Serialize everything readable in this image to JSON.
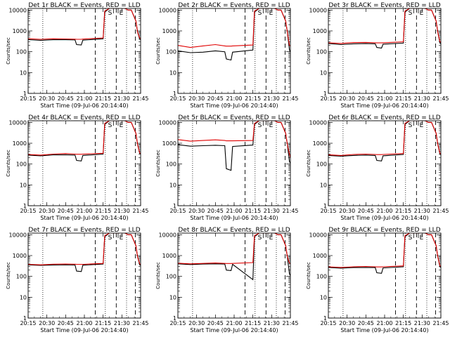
{
  "colors": {
    "events": "#000000",
    "lld": "#e00000",
    "axis": "#000000",
    "background": "#ffffff"
  },
  "chart_data": [
    {
      "type": "line",
      "title": "Det 1r BLACK = Events, RED = LLD",
      "xlabel": "Start Time (09-Jul-06 20:14:40)",
      "ylabel": "Counts/sec",
      "xticks": [
        "20:15",
        "20:30",
        "20:45",
        "21:00",
        "21:15",
        "21:30",
        "21:45"
      ],
      "yticks": [
        "1",
        "10",
        "100",
        "1000",
        "10000"
      ],
      "xlim": [
        0,
        36
      ],
      "ylim": [
        1,
        12000
      ],
      "yscale": "log",
      "markers": [
        "S",
        "E"
      ],
      "x": [
        0,
        4,
        8,
        12,
        15,
        15.5,
        17,
        17.5,
        24,
        24.5,
        26,
        29,
        31,
        32,
        33,
        34.5,
        35,
        35.7,
        36
      ],
      "series": [
        {
          "name": "Events",
          "values": [
            380,
            355,
            375,
            375,
            370,
            220,
            210,
            360,
            420,
            8000,
            13000,
            13000,
            12000,
            10000,
            10000,
            3000,
            900,
            400,
            380
          ]
        },
        {
          "name": "LLD",
          "values": [
            420,
            395,
            420,
            410,
            400,
            395,
            395,
            405,
            460,
            9000,
            13000,
            13000,
            12000,
            10000,
            10000,
            3000,
            900,
            450,
            420
          ]
        }
      ]
    },
    {
      "type": "line",
      "title": "Det 2r BLACK = Events, RED = LLD",
      "xlabel": "Start Time (09-Jul-06 20:14:40)",
      "ylabel": "Counts/sec",
      "xticks": [
        "20:15",
        "20:30",
        "20:45",
        "21:00",
        "21:15",
        "21:30",
        "21:45"
      ],
      "yticks": [
        "1",
        "10",
        "100",
        "1000",
        "10000"
      ],
      "xlim": [
        0,
        36
      ],
      "ylim": [
        1,
        12000
      ],
      "yscale": "log",
      "markers": [
        "S",
        "E"
      ],
      "x": [
        0,
        4,
        8,
        12,
        15,
        15.5,
        17,
        17.5,
        24,
        24.5,
        26,
        29,
        31,
        32,
        33,
        34.5,
        35,
        35.7,
        36
      ],
      "series": [
        {
          "name": "Events",
          "values": [
            110,
            90,
            95,
            110,
            100,
            45,
            40,
            95,
            120,
            8000,
            13000,
            13000,
            12000,
            10000,
            10000,
            3000,
            900,
            120,
            100
          ]
        },
        {
          "name": "LLD",
          "values": [
            200,
            160,
            190,
            220,
            190,
            185,
            185,
            190,
            210,
            9000,
            13000,
            13000,
            12000,
            10000,
            10000,
            3000,
            900,
            200,
            190
          ]
        }
      ]
    },
    {
      "type": "line",
      "title": "Det 3r BLACK = Events, RED = LLD",
      "xlabel": "Start Time (09-Jul-06 20:14:40)",
      "ylabel": "Counts/sec",
      "xticks": [
        "20:15",
        "20:30",
        "20:45",
        "21:00",
        "21:15",
        "21:30",
        "21:45"
      ],
      "yticks": [
        "1",
        "10",
        "100",
        "1000",
        "10000"
      ],
      "xlim": [
        0,
        36
      ],
      "ylim": [
        1,
        12000
      ],
      "yscale": "log",
      "markers": [
        "S",
        "E"
      ],
      "x": [
        0,
        4,
        8,
        12,
        15,
        15.5,
        17,
        17.5,
        24,
        24.5,
        26,
        29,
        31,
        32,
        33,
        34.5,
        35,
        35.7,
        36
      ],
      "series": [
        {
          "name": "Events",
          "values": [
            250,
            220,
            240,
            245,
            240,
            160,
            150,
            230,
            260,
            8000,
            13000,
            13000,
            12000,
            10000,
            10000,
            3000,
            900,
            260,
            240
          ]
        },
        {
          "name": "LLD",
          "values": [
            270,
            250,
            275,
            280,
            270,
            265,
            265,
            270,
            300,
            9000,
            13000,
            13000,
            12000,
            10000,
            10000,
            3000,
            900,
            300,
            280
          ]
        }
      ]
    },
    {
      "type": "line",
      "title": "Det 4r BLACK = Events, RED = LLD",
      "xlabel": "Start Time (09-Jul-06 20:14:40)",
      "ylabel": "Counts/sec",
      "xticks": [
        "20:15",
        "20:30",
        "20:45",
        "21:00",
        "21:15",
        "21:30",
        "21:45"
      ],
      "yticks": [
        "1",
        "10",
        "100",
        "1000",
        "10000"
      ],
      "xlim": [
        0,
        36
      ],
      "ylim": [
        1,
        12000
      ],
      "yscale": "log",
      "markers": [
        "S",
        "E"
      ],
      "x": [
        0,
        4,
        8,
        12,
        15,
        15.5,
        17,
        17.5,
        24,
        24.5,
        26,
        29,
        31,
        32,
        33,
        34.5,
        35,
        35.7,
        36
      ],
      "series": [
        {
          "name": "Events",
          "values": [
            270,
            250,
            275,
            280,
            270,
            150,
            140,
            260,
            300,
            8000,
            13000,
            13000,
            12000,
            10000,
            10000,
            3000,
            900,
            320,
            300
          ]
        },
        {
          "name": "LLD",
          "values": [
            290,
            270,
            300,
            320,
            300,
            295,
            295,
            300,
            330,
            9000,
            13000,
            13000,
            12000,
            10000,
            10000,
            3000,
            900,
            340,
            320
          ]
        }
      ]
    },
    {
      "type": "line",
      "title": "Det 5r BLACK = Events, RED = LLD",
      "xlabel": "Start Time (09-Jul-06 20:14:40)",
      "ylabel": "Counts/sec",
      "xticks": [
        "20:15",
        "20:30",
        "20:45",
        "21:00",
        "21:15",
        "21:30",
        "21:45"
      ],
      "yticks": [
        "1",
        "10",
        "100",
        "1000",
        "10000"
      ],
      "xlim": [
        0,
        36
      ],
      "ylim": [
        1,
        12000
      ],
      "yscale": "log",
      "markers": [
        "S",
        "E"
      ],
      "x": [
        0,
        4,
        8,
        12,
        15,
        15.5,
        17,
        17.5,
        24,
        24.5,
        26,
        29,
        31,
        32,
        33,
        34.5,
        35,
        35.7,
        36
      ],
      "series": [
        {
          "name": "Events",
          "values": [
            850,
            720,
            760,
            800,
            760,
            60,
            50,
            700,
            820,
            8000,
            13000,
            13000,
            12000,
            10000,
            10000,
            3000,
            900,
            130,
            110
          ]
        },
        {
          "name": "LLD",
          "values": [
            1500,
            1250,
            1350,
            1450,
            1350,
            1300,
            1300,
            1300,
            1350,
            9000,
            13000,
            13000,
            12000,
            10000,
            10000,
            3000,
            900,
            300,
            200
          ]
        }
      ]
    },
    {
      "type": "line",
      "title": "Det 6r BLACK = Events, RED = LLD",
      "xlabel": "Start Time (09-Jul-06 20:14:40)",
      "ylabel": "Counts/sec",
      "xticks": [
        "20:15",
        "20:30",
        "20:45",
        "21:00",
        "21:15",
        "21:30",
        "21:45"
      ],
      "yticks": [
        "1",
        "10",
        "100",
        "1000",
        "10000"
      ],
      "xlim": [
        0,
        36
      ],
      "ylim": [
        1,
        12000
      ],
      "yscale": "log",
      "markers": [
        "S",
        "E"
      ],
      "x": [
        0,
        4,
        8,
        12,
        15,
        15.5,
        17,
        17.5,
        24,
        24.5,
        26,
        29,
        31,
        32,
        33,
        34.5,
        35,
        35.7,
        36
      ],
      "series": [
        {
          "name": "Events",
          "values": [
            260,
            240,
            260,
            270,
            260,
            150,
            140,
            250,
            290,
            8000,
            13000,
            13000,
            12000,
            10000,
            10000,
            3000,
            900,
            300,
            280
          ]
        },
        {
          "name": "LLD",
          "values": [
            280,
            260,
            290,
            300,
            290,
            285,
            285,
            290,
            320,
            9000,
            13000,
            13000,
            12000,
            10000,
            10000,
            3000,
            900,
            330,
            300
          ]
        }
      ]
    },
    {
      "type": "line",
      "title": "Det 7r BLACK = Events, RED = LLD",
      "xlabel": "Start Time (09-Jul-06 20:14:40)",
      "ylabel": "Counts/sec",
      "xticks": [
        "20:15",
        "20:30",
        "20:45",
        "21:00",
        "21:15",
        "21:30",
        "21:45"
      ],
      "yticks": [
        "1",
        "10",
        "100",
        "1000",
        "10000"
      ],
      "xlim": [
        0,
        36
      ],
      "ylim": [
        1,
        12000
      ],
      "yscale": "log",
      "markers": [
        "S",
        "E"
      ],
      "x": [
        0,
        4,
        8,
        12,
        15,
        15.5,
        17,
        17.5,
        24,
        24.5,
        26,
        29,
        31,
        32,
        33,
        34.5,
        35,
        35.7,
        36
      ],
      "series": [
        {
          "name": "Events",
          "values": [
            360,
            340,
            355,
            360,
            355,
            180,
            170,
            345,
            390,
            8000,
            13000,
            13000,
            12000,
            10000,
            10000,
            3000,
            900,
            360,
            340
          ]
        },
        {
          "name": "LLD",
          "values": [
            380,
            360,
            385,
            395,
            385,
            380,
            380,
            380,
            420,
            9000,
            13000,
            13000,
            12000,
            10000,
            10000,
            3000,
            900,
            400,
            380
          ]
        }
      ]
    },
    {
      "type": "line",
      "title": "Det 8r BLACK = Events, RED = LLD",
      "xlabel": "Start Time (09-Jul-06 20:14:40)",
      "ylabel": "Counts/sec",
      "xticks": [
        "20:15",
        "20:30",
        "20:45",
        "21:00",
        "21:15",
        "21:30",
        "21:45"
      ],
      "yticks": [
        "1",
        "10",
        "100",
        "1000",
        "10000"
      ],
      "xlim": [
        0,
        36
      ],
      "ylim": [
        1,
        12000
      ],
      "yscale": "log",
      "markers": [
        "S",
        "E"
      ],
      "x": [
        0,
        4,
        8,
        12,
        15,
        15.5,
        17,
        17.5,
        24,
        24.5,
        26,
        29,
        31,
        32,
        33,
        34.5,
        35,
        35.7,
        36
      ],
      "series": [
        {
          "name": "Events",
          "values": [
            400,
            370,
            390,
            400,
            390,
            200,
            190,
            380,
            70,
            8000,
            13000,
            13000,
            12000,
            10000,
            10000,
            3000,
            900,
            130,
            110
          ]
        },
        {
          "name": "LLD",
          "values": [
            430,
            400,
            420,
            440,
            420,
            415,
            415,
            420,
            460,
            9000,
            13000,
            13000,
            12000,
            10000,
            10000,
            3000,
            900,
            440,
            420
          ]
        }
      ]
    },
    {
      "type": "line",
      "title": "Det 9r BLACK = Events, RED = LLD",
      "xlabel": "Start Time (09-Jul-06 20:14:40)",
      "ylabel": "Counts/sec",
      "xticks": [
        "20:15",
        "20:30",
        "20:45",
        "21:00",
        "21:15",
        "21:30",
        "21:45"
      ],
      "yticks": [
        "1",
        "10",
        "100",
        "1000",
        "10000"
      ],
      "xlim": [
        0,
        36
      ],
      "ylim": [
        1,
        12000
      ],
      "yscale": "log",
      "markers": [
        "S",
        "E"
      ],
      "x": [
        0,
        4,
        8,
        12,
        15,
        15.5,
        17,
        17.5,
        24,
        24.5,
        26,
        29,
        31,
        32,
        33,
        34.5,
        35,
        35.7,
        36
      ],
      "series": [
        {
          "name": "Events",
          "values": [
            270,
            250,
            265,
            270,
            265,
            150,
            140,
            255,
            290,
            8000,
            13000,
            13000,
            12000,
            10000,
            10000,
            3000,
            900,
            290,
            270
          ]
        },
        {
          "name": "LLD",
          "values": [
            290,
            270,
            290,
            300,
            290,
            285,
            285,
            290,
            320,
            9000,
            13000,
            13000,
            12000,
            10000,
            10000,
            3000,
            900,
            320,
            300
          ]
        }
      ]
    }
  ]
}
